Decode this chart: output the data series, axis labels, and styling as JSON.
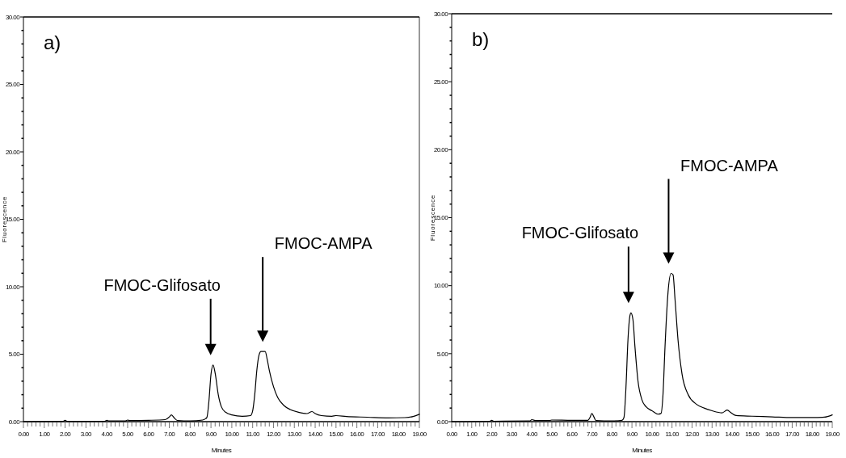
{
  "chart_data": [
    {
      "type": "line",
      "xlabel": "Minutes",
      "ylabel": "Fluorescence",
      "annotations": [
        "a)",
        "FMOC-Glifosato",
        "FMOC-AMPA"
      ],
      "series": [
        {
          "color": "#000000",
          "x": [
            0,
            1.9,
            2.0,
            2.1,
            3.9,
            4.0,
            4.1,
            4.9,
            5.0,
            5.1,
            6.0,
            6.8,
            7.0,
            7.1,
            7.25,
            7.4,
            8.0,
            8.6,
            8.8,
            8.9,
            9.0,
            9.1,
            9.2,
            9.35,
            9.5,
            9.7,
            10.0,
            10.5,
            10.9,
            11.0,
            11.1,
            11.2,
            11.3,
            11.4,
            11.6,
            11.7,
            11.8,
            12.0,
            12.2,
            12.5,
            12.8,
            13.2,
            13.6,
            13.85,
            14.0,
            14.3,
            14.8,
            15.0,
            15.5,
            16.5,
            17.5,
            18.3,
            18.7,
            19.0
          ],
          "values": [
            0,
            0.02,
            0.1,
            0.02,
            0.03,
            0.1,
            0.05,
            0.05,
            0.12,
            0.08,
            0.1,
            0.15,
            0.35,
            0.5,
            0.25,
            0.08,
            0.05,
            0.12,
            0.3,
            1.5,
            3.5,
            4.2,
            3.6,
            2.0,
            1.1,
            0.7,
            0.5,
            0.4,
            0.45,
            0.8,
            2.0,
            3.8,
            4.9,
            5.2,
            5.2,
            4.6,
            3.8,
            2.6,
            1.8,
            1.2,
            0.9,
            0.7,
            0.6,
            0.75,
            0.6,
            0.45,
            0.4,
            0.45,
            0.38,
            0.33,
            0.28,
            0.3,
            0.38,
            0.55
          ]
        }
      ],
      "xlim": [
        0,
        19
      ],
      "ylim": [
        0,
        30
      ],
      "line_style": "solid",
      "marker": "none",
      "xticks": [
        {
          "value": 0,
          "label": "0.00"
        },
        {
          "value": 0.2,
          "label": null
        },
        {
          "value": 0.4,
          "label": null
        },
        {
          "value": 0.6,
          "label": null
        },
        {
          "value": 0.8,
          "label": null
        },
        {
          "value": 1,
          "label": "1.00"
        },
        {
          "value": 1.2,
          "label": null
        },
        {
          "value": 1.4,
          "label": null
        },
        {
          "value": 1.6,
          "label": null
        },
        {
          "value": 1.8,
          "label": null
        },
        {
          "value": 2,
          "label": "2.00"
        },
        {
          "value": 2.2,
          "label": null
        },
        {
          "value": 2.4,
          "label": null
        },
        {
          "value": 2.6,
          "label": null
        },
        {
          "value": 2.8,
          "label": null
        },
        {
          "value": 3,
          "label": "3.00"
        },
        {
          "value": 3.2,
          "label": null
        },
        {
          "value": 3.4,
          "label": null
        },
        {
          "value": 3.6,
          "label": null
        },
        {
          "value": 3.8,
          "label": null
        },
        {
          "value": 4,
          "label": "4.00"
        },
        {
          "value": 4.2,
          "label": null
        },
        {
          "value": 4.4,
          "label": null
        },
        {
          "value": 4.6,
          "label": null
        },
        {
          "value": 4.8,
          "label": null
        },
        {
          "value": 5,
          "label": "5.00"
        },
        {
          "value": 5.2,
          "label": null
        },
        {
          "value": 5.4,
          "label": null
        },
        {
          "value": 5.6,
          "label": null
        },
        {
          "value": 5.8,
          "label": null
        },
        {
          "value": 6,
          "label": "6.00"
        },
        {
          "value": 6.2,
          "label": null
        },
        {
          "value": 6.4,
          "label": null
        },
        {
          "value": 6.6,
          "label": null
        },
        {
          "value": 6.8,
          "label": null
        },
        {
          "value": 7,
          "label": "7.00"
        },
        {
          "value": 7.2,
          "label": null
        },
        {
          "value": 7.4,
          "label": null
        },
        {
          "value": 7.6,
          "label": null
        },
        {
          "value": 7.8,
          "label": null
        },
        {
          "value": 8,
          "label": "8.00"
        },
        {
          "value": 8.2,
          "label": null
        },
        {
          "value": 8.4,
          "label": null
        },
        {
          "value": 8.6,
          "label": null
        },
        {
          "value": 8.8,
          "label": null
        },
        {
          "value": 9,
          "label": "9.00"
        },
        {
          "value": 9.2,
          "label": null
        },
        {
          "value": 9.4,
          "label": null
        },
        {
          "value": 9.6,
          "label": null
        },
        {
          "value": 9.8,
          "label": null
        },
        {
          "value": 10,
          "label": "10.00"
        },
        {
          "value": 10.2,
          "label": null
        },
        {
          "value": 10.4,
          "label": null
        },
        {
          "value": 10.6,
          "label": null
        },
        {
          "value": 10.8,
          "label": null
        },
        {
          "value": 11,
          "label": "11.00"
        },
        {
          "value": 11.2,
          "label": null
        },
        {
          "value": 11.4,
          "label": null
        },
        {
          "value": 11.6,
          "label": null
        },
        {
          "value": 11.8,
          "label": null
        },
        {
          "value": 12,
          "label": "12.00"
        },
        {
          "value": 12.2,
          "label": null
        },
        {
          "value": 12.4,
          "label": null
        },
        {
          "value": 12.6,
          "label": null
        },
        {
          "value": 12.8,
          "label": null
        },
        {
          "value": 13,
          "label": "13.00"
        },
        {
          "value": 13.2,
          "label": null
        },
        {
          "value": 13.4,
          "label": null
        },
        {
          "value": 13.6,
          "label": null
        },
        {
          "value": 13.8,
          "label": null
        },
        {
          "value": 14,
          "label": "14.00"
        },
        {
          "value": 14.2,
          "label": null
        },
        {
          "value": 14.4,
          "label": null
        },
        {
          "value": 14.6,
          "label": null
        },
        {
          "value": 14.8,
          "label": null
        },
        {
          "value": 15,
          "label": "15.00"
        },
        {
          "value": 15.2,
          "label": null
        },
        {
          "value": 15.4,
          "label": null
        },
        {
          "value": 15.6,
          "label": null
        },
        {
          "value": 15.8,
          "label": null
        },
        {
          "value": 16,
          "label": "16.00"
        },
        {
          "value": 16.2,
          "label": null
        },
        {
          "value": 16.4,
          "label": null
        },
        {
          "value": 16.6,
          "label": null
        },
        {
          "value": 16.8,
          "label": null
        },
        {
          "value": 17,
          "label": "17.00"
        },
        {
          "value": 17.2,
          "label": null
        },
        {
          "value": 17.4,
          "label": null
        },
        {
          "value": 17.6,
          "label": null
        },
        {
          "value": 17.8,
          "label": null
        },
        {
          "value": 18,
          "label": "18.00"
        },
        {
          "value": 18.2,
          "label": null
        },
        {
          "value": 18.4,
          "label": null
        },
        {
          "value": 18.6,
          "label": null
        },
        {
          "value": 18.8,
          "label": null
        },
        {
          "value": 19,
          "label": "19.00"
        }
      ],
      "yticks": [
        {
          "value": 0,
          "label": "0.00"
        },
        {
          "value": 1,
          "label": null
        },
        {
          "value": 2,
          "label": null
        },
        {
          "value": 3,
          "label": null
        },
        {
          "value": 4,
          "label": null
        },
        {
          "value": 5,
          "label": "5.00"
        },
        {
          "value": 6,
          "label": null
        },
        {
          "value": 7,
          "label": null
        },
        {
          "value": 8,
          "label": null
        },
        {
          "value": 9,
          "label": null
        },
        {
          "value": 10,
          "label": "10.00"
        },
        {
          "value": 11,
          "label": null
        },
        {
          "value": 12,
          "label": null
        },
        {
          "value": 13,
          "label": null
        },
        {
          "value": 14,
          "label": null
        },
        {
          "value": 15,
          "label": "15.00"
        },
        {
          "value": 16,
          "label": null
        },
        {
          "value": 17,
          "label": null
        },
        {
          "value": 18,
          "label": null
        },
        {
          "value": 19,
          "label": null
        },
        {
          "value": 20,
          "label": "20.00"
        },
        {
          "value": 21,
          "label": null
        },
        {
          "value": 22,
          "label": null
        },
        {
          "value": 23,
          "label": null
        },
        {
          "value": 24,
          "label": null
        },
        {
          "value": 25,
          "label": "25.00"
        },
        {
          "value": 26,
          "label": null
        },
        {
          "value": 27,
          "label": null
        },
        {
          "value": 28,
          "label": null
        },
        {
          "value": 29,
          "label": null
        },
        {
          "value": 30,
          "label": "30.00"
        }
      ]
    },
    {
      "type": "line",
      "xlabel": "Minutes",
      "ylabel": "Fluorescence",
      "annotations": [
        "b)",
        "FMOC-Glifosato",
        "FMOC-AMPA"
      ],
      "series": [
        {
          "color": "#000000",
          "x": [
            0,
            1.9,
            2.0,
            2.1,
            3.9,
            4.0,
            4.2,
            4.9,
            5.0,
            6.0,
            6.8,
            6.9,
            7.0,
            7.1,
            7.2,
            8.0,
            8.5,
            8.6,
            8.7,
            8.8,
            8.9,
            8.95,
            9.05,
            9.15,
            9.3,
            9.5,
            9.7,
            10.0,
            10.3,
            10.45,
            10.55,
            10.65,
            10.8,
            10.95,
            11.05,
            11.15,
            11.3,
            11.5,
            11.8,
            12.2,
            12.6,
            13.0,
            13.5,
            13.75,
            13.95,
            14.2,
            15.0,
            16.0,
            17.0,
            18.0,
            18.6,
            19.0
          ],
          "values": [
            0,
            0.03,
            0.1,
            0.03,
            0.05,
            0.15,
            0.08,
            0.08,
            0.12,
            0.1,
            0.1,
            0.3,
            0.6,
            0.35,
            0.08,
            0.05,
            0.1,
            0.3,
            2.5,
            6.0,
            7.8,
            8.0,
            7.5,
            5.5,
            3.0,
            1.6,
            1.1,
            0.8,
            0.55,
            0.6,
            2.0,
            5.5,
            9.5,
            10.9,
            10.8,
            9.0,
            6.0,
            3.5,
            2.0,
            1.3,
            1.0,
            0.8,
            0.65,
            0.85,
            0.65,
            0.45,
            0.4,
            0.35,
            0.3,
            0.3,
            0.33,
            0.5
          ]
        }
      ],
      "xlim": [
        0,
        19
      ],
      "ylim": [
        0,
        30
      ],
      "line_style": "solid",
      "marker": "none",
      "xticks": [
        {
          "value": 0,
          "label": "0.00"
        },
        {
          "value": 0.2,
          "label": null
        },
        {
          "value": 0.4,
          "label": null
        },
        {
          "value": 0.6,
          "label": null
        },
        {
          "value": 0.8,
          "label": null
        },
        {
          "value": 1,
          "label": "1.00"
        },
        {
          "value": 1.2,
          "label": null
        },
        {
          "value": 1.4,
          "label": null
        },
        {
          "value": 1.6,
          "label": null
        },
        {
          "value": 1.8,
          "label": null
        },
        {
          "value": 2,
          "label": "2.00"
        },
        {
          "value": 2.2,
          "label": null
        },
        {
          "value": 2.4,
          "label": null
        },
        {
          "value": 2.6,
          "label": null
        },
        {
          "value": 2.8,
          "label": null
        },
        {
          "value": 3,
          "label": "3.00"
        },
        {
          "value": 3.2,
          "label": null
        },
        {
          "value": 3.4,
          "label": null
        },
        {
          "value": 3.6,
          "label": null
        },
        {
          "value": 3.8,
          "label": null
        },
        {
          "value": 4,
          "label": "4.00"
        },
        {
          "value": 4.2,
          "label": null
        },
        {
          "value": 4.4,
          "label": null
        },
        {
          "value": 4.6,
          "label": null
        },
        {
          "value": 4.8,
          "label": null
        },
        {
          "value": 5,
          "label": "5.00"
        },
        {
          "value": 5.2,
          "label": null
        },
        {
          "value": 5.4,
          "label": null
        },
        {
          "value": 5.6,
          "label": null
        },
        {
          "value": 5.8,
          "label": null
        },
        {
          "value": 6,
          "label": "6.00"
        },
        {
          "value": 6.2,
          "label": null
        },
        {
          "value": 6.4,
          "label": null
        },
        {
          "value": 6.6,
          "label": null
        },
        {
          "value": 6.8,
          "label": null
        },
        {
          "value": 7,
          "label": "7.00"
        },
        {
          "value": 7.2,
          "label": null
        },
        {
          "value": 7.4,
          "label": null
        },
        {
          "value": 7.6,
          "label": null
        },
        {
          "value": 7.8,
          "label": null
        },
        {
          "value": 8,
          "label": "8.00"
        },
        {
          "value": 8.2,
          "label": null
        },
        {
          "value": 8.4,
          "label": null
        },
        {
          "value": 8.6,
          "label": null
        },
        {
          "value": 8.8,
          "label": null
        },
        {
          "value": 9,
          "label": "9.00"
        },
        {
          "value": 9.2,
          "label": null
        },
        {
          "value": 9.4,
          "label": null
        },
        {
          "value": 9.6,
          "label": null
        },
        {
          "value": 9.8,
          "label": null
        },
        {
          "value": 10,
          "label": "10.00"
        },
        {
          "value": 10.2,
          "label": null
        },
        {
          "value": 10.4,
          "label": null
        },
        {
          "value": 10.6,
          "label": null
        },
        {
          "value": 10.8,
          "label": null
        },
        {
          "value": 11,
          "label": "11.00"
        },
        {
          "value": 11.2,
          "label": null
        },
        {
          "value": 11.4,
          "label": null
        },
        {
          "value": 11.6,
          "label": null
        },
        {
          "value": 11.8,
          "label": null
        },
        {
          "value": 12,
          "label": "12.00"
        },
        {
          "value": 12.2,
          "label": null
        },
        {
          "value": 12.4,
          "label": null
        },
        {
          "value": 12.6,
          "label": null
        },
        {
          "value": 12.8,
          "label": null
        },
        {
          "value": 13,
          "label": "13.00"
        },
        {
          "value": 13.2,
          "label": null
        },
        {
          "value": 13.4,
          "label": null
        },
        {
          "value": 13.6,
          "label": null
        },
        {
          "value": 13.8,
          "label": null
        },
        {
          "value": 14,
          "label": "14.00"
        },
        {
          "value": 14.2,
          "label": null
        },
        {
          "value": 14.4,
          "label": null
        },
        {
          "value": 14.6,
          "label": null
        },
        {
          "value": 14.8,
          "label": null
        },
        {
          "value": 15,
          "label": "15.00"
        },
        {
          "value": 15.2,
          "label": null
        },
        {
          "value": 15.4,
          "label": null
        },
        {
          "value": 15.6,
          "label": null
        },
        {
          "value": 15.8,
          "label": null
        },
        {
          "value": 16,
          "label": "16.00"
        },
        {
          "value": 16.2,
          "label": null
        },
        {
          "value": 16.4,
          "label": null
        },
        {
          "value": 16.6,
          "label": null
        },
        {
          "value": 16.8,
          "label": null
        },
        {
          "value": 17,
          "label": "17.00"
        },
        {
          "value": 17.2,
          "label": null
        },
        {
          "value": 17.4,
          "label": null
        },
        {
          "value": 17.6,
          "label": null
        },
        {
          "value": 17.8,
          "label": null
        },
        {
          "value": 18,
          "label": "18.00"
        },
        {
          "value": 18.2,
          "label": null
        },
        {
          "value": 18.4,
          "label": null
        },
        {
          "value": 18.6,
          "label": null
        },
        {
          "value": 18.8,
          "label": null
        },
        {
          "value": 19,
          "label": "19.00"
        }
      ],
      "yticks": [
        {
          "value": 0,
          "label": "0.00"
        },
        {
          "value": 1,
          "label": null
        },
        {
          "value": 2,
          "label": null
        },
        {
          "value": 3,
          "label": null
        },
        {
          "value": 4,
          "label": null
        },
        {
          "value": 5,
          "label": "5.00"
        },
        {
          "value": 6,
          "label": null
        },
        {
          "value": 7,
          "label": null
        },
        {
          "value": 8,
          "label": null
        },
        {
          "value": 9,
          "label": null
        },
        {
          "value": 10,
          "label": "10.00"
        },
        {
          "value": 11,
          "label": null
        },
        {
          "value": 12,
          "label": null
        },
        {
          "value": 13,
          "label": null
        },
        {
          "value": 14,
          "label": null
        },
        {
          "value": 15,
          "label": "15.00"
        },
        {
          "value": 16,
          "label": null
        },
        {
          "value": 17,
          "label": null
        },
        {
          "value": 18,
          "label": null
        },
        {
          "value": 19,
          "label": null
        },
        {
          "value": 20,
          "label": "20.00"
        },
        {
          "value": 21,
          "label": null
        },
        {
          "value": 22,
          "label": null
        },
        {
          "value": 23,
          "label": null
        },
        {
          "value": 24,
          "label": null
        },
        {
          "value": 25,
          "label": "25.00"
        },
        {
          "value": 26,
          "label": null
        },
        {
          "value": 27,
          "label": null
        },
        {
          "value": 28,
          "label": null
        },
        {
          "value": 29,
          "label": null
        },
        {
          "value": 30,
          "label": "30.00"
        }
      ]
    }
  ]
}
